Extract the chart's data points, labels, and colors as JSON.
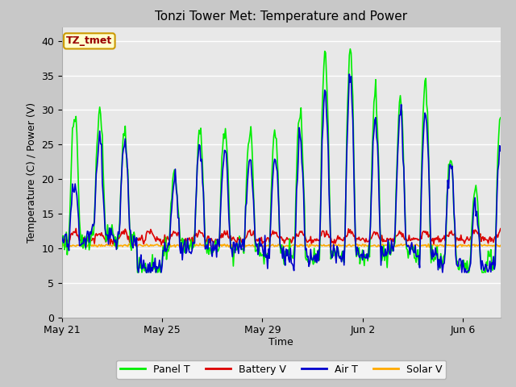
{
  "title": "Tonzi Tower Met: Temperature and Power",
  "xlabel": "Time",
  "ylabel": "Temperature (C) / Power (V)",
  "ylim": [
    0,
    42
  ],
  "yticks": [
    0,
    5,
    10,
    15,
    20,
    25,
    30,
    35,
    40
  ],
  "legend_label": "TZ_tmet",
  "series_labels": [
    "Panel T",
    "Battery V",
    "Air T",
    "Solar V"
  ],
  "series_colors": [
    "#00ee00",
    "#dd0000",
    "#0000cc",
    "#ffaa00"
  ],
  "fig_bg": "#c8c8c8",
  "plot_bg": "#e8e8e8",
  "line_width": 1.2,
  "date_range_days": 17.5,
  "tick_dates": [
    "May 21",
    "May 25",
    "May 29",
    "Jun 2",
    "Jun 6"
  ],
  "tick_positions": [
    0,
    4,
    8,
    12,
    16
  ]
}
